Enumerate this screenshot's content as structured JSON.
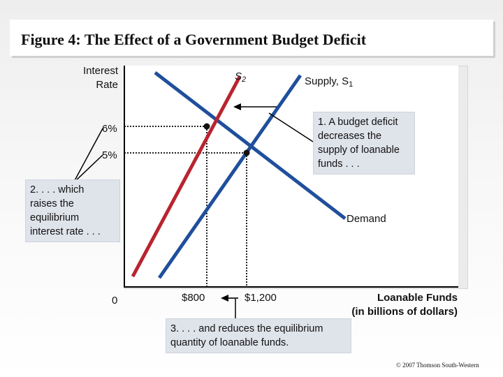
{
  "title": "Figure 4: The Effect of a Government Budget Deficit",
  "copyright": "© 2007 Thomson South-Western",
  "chart_data": {
    "type": "line",
    "title": "Figure 4: The Effect of a Government Budget Deficit",
    "ylabel": "Interest Rate",
    "xlabel_line1": "Loanable Funds",
    "xlabel_line2": "(in billions of dollars)",
    "y_ticks": [
      "6%",
      "5%",
      "0"
    ],
    "x_ticks": [
      "$800",
      "$1,200"
    ],
    "series": [
      {
        "name": "Supply, S1",
        "label": "Supply, S",
        "label_sub": "1",
        "color": "#1f4f9c"
      },
      {
        "name": "S2",
        "label": "S",
        "label_sub": "2",
        "color": "#b8242f"
      },
      {
        "name": "Demand",
        "label": "Demand",
        "color": "#1f4f9c"
      }
    ],
    "equilibria": [
      {
        "quantity": 800,
        "rate": 6
      },
      {
        "quantity": 1200,
        "rate": 5
      }
    ]
  },
  "annotations": {
    "note1": "1. A budget deficit\ndecreases the\nsupply of loanable\nfunds . . .",
    "note2": "2. . . . which\nraises the\nequilibrium\ninterest rate . . .",
    "note3": "3. . . . and reduces the equilibrium\nquantity of loanable funds."
  }
}
